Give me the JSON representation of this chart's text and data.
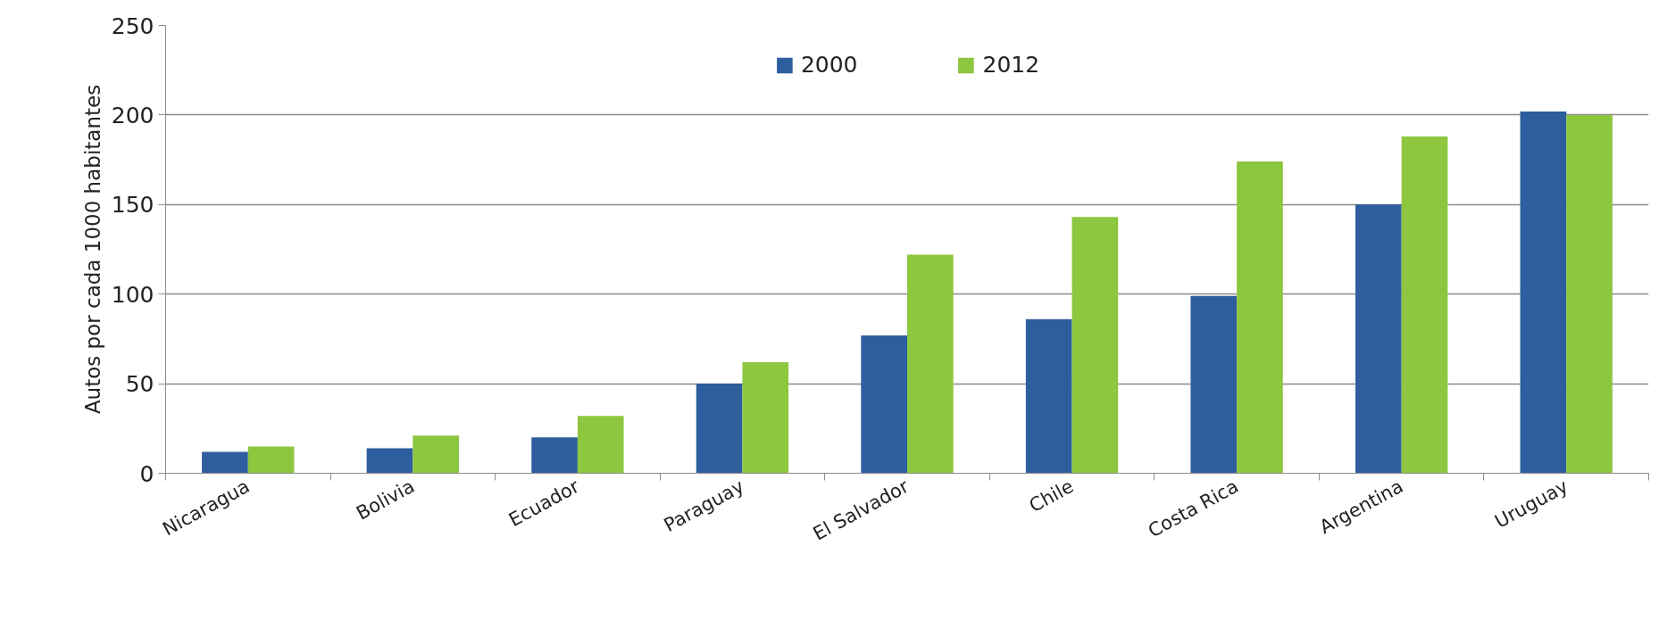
{
  "chart_data": {
    "type": "bar",
    "ylabel": "Autos por cada 1000 habitantes",
    "categories": [
      "Nicaragua",
      "Bolivia",
      "Ecuador",
      "Paraguay",
      "El Salvador",
      "Chile",
      "Costa Rica",
      "Argentina",
      "Uruguay"
    ],
    "series": [
      {
        "name": "2000",
        "color": "#2e5e9e",
        "values": [
          12,
          14,
          20,
          50,
          77,
          86,
          99,
          150,
          202
        ]
      },
      {
        "name": "2012",
        "color": "#8dc63f",
        "values": [
          15,
          21,
          32,
          62,
          122,
          143,
          174,
          188,
          200
        ]
      }
    ],
    "ylim": [
      0,
      250
    ],
    "yticks": [
      0,
      50,
      100,
      150,
      200,
      250
    ],
    "grid": "y",
    "legend": "top"
  }
}
